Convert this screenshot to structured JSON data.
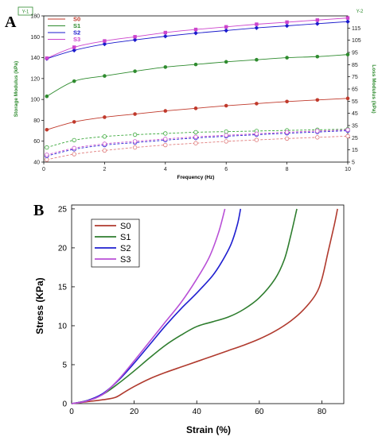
{
  "chart_data": [
    {
      "panel_label": "A",
      "type": "line",
      "xlabel": "Frequency (Hz)",
      "ylabel_left": "Storage Modulus (kPa)",
      "ylabel_right": "Loss Modulus (kPa)",
      "left_axis_tag": "Y-1",
      "right_axis_tag": "Y-2",
      "xlim": [
        0,
        10
      ],
      "ylim_left": [
        40,
        180
      ],
      "ylim_right": [
        5,
        125
      ],
      "x_ticks": [
        0,
        2,
        4,
        6,
        8,
        10
      ],
      "y_ticks_left": [
        40,
        60,
        80,
        100,
        120,
        140,
        160,
        180
      ],
      "y_ticks_right": [
        5,
        15,
        25,
        35,
        45,
        55,
        65,
        75,
        85,
        95,
        105,
        115
      ],
      "legend_position": "top-left",
      "x": [
        0.1,
        1,
        2,
        3,
        4,
        5,
        6,
        7,
        8,
        9,
        10
      ],
      "series": [
        {
          "name": "S0",
          "color": "#c0392b",
          "axis": "left",
          "marker": "circle-filled",
          "values": [
            71,
            78.5,
            83,
            86,
            89,
            91.5,
            94,
            96,
            98,
            99.5,
            101
          ]
        },
        {
          "name": "S1",
          "color": "#2e8b2e",
          "axis": "left",
          "marker": "circle-filled",
          "values": [
            103,
            117.5,
            122.5,
            127,
            131,
            133.5,
            136,
            138,
            140,
            141,
            143
          ]
        },
        {
          "name": "S2",
          "color": "#1a1acc",
          "axis": "left",
          "marker": "diamond-filled",
          "values": [
            139,
            147,
            153,
            157,
            160.5,
            163.5,
            166,
            168.5,
            170.5,
            172.5,
            174.5
          ]
        },
        {
          "name": "S3",
          "color": "#cc44cc",
          "axis": "left",
          "marker": "square-filled",
          "values": [
            139.5,
            150,
            156,
            160,
            164,
            167,
            169.5,
            172,
            174,
            176,
            178
          ]
        },
        {
          "name": "S0",
          "color": "#e07b7b",
          "axis": "right",
          "marker": "circle-open",
          "dashed": true,
          "values": [
            7,
            11.5,
            14.5,
            17,
            19,
            20.5,
            22,
            23.2,
            24.3,
            25.3,
            26.3
          ]
        },
        {
          "name": "S1",
          "color": "#3aa83a",
          "axis": "right",
          "marker": "circle-open",
          "dashed": true,
          "values": [
            17,
            23,
            26,
            27.5,
            28.5,
            29.5,
            30,
            30.5,
            31,
            31.5,
            32
          ]
        },
        {
          "name": "S2",
          "color": "#2a2ad6",
          "axis": "right",
          "marker": "circle-open",
          "dashed": true,
          "values": [
            10,
            15.5,
            19,
            21,
            23,
            24.8,
            26.2,
            27.5,
            28.7,
            29.7,
            30.8
          ]
        },
        {
          "name": "S3",
          "color": "#cc55cc",
          "axis": "right",
          "marker": "circle-open",
          "dashed": true,
          "values": [
            11,
            16.5,
            20,
            22,
            24,
            25.7,
            27,
            28.3,
            29.5,
            30.5,
            31.5
          ]
        }
      ]
    },
    {
      "panel_label": "B",
      "type": "line",
      "xlabel": "Strain (%)",
      "ylabel": "Stress (KPa)",
      "xlim": [
        0,
        87
      ],
      "ylim": [
        0,
        25.5
      ],
      "x_ticks": [
        0,
        20,
        40,
        60,
        80
      ],
      "y_ticks": [
        0,
        5,
        10,
        15,
        20,
        25
      ],
      "legend_position": "top-left",
      "series": [
        {
          "name": "S0",
          "color": "#b03a2e",
          "points": [
            [
              0,
              0
            ],
            [
              5,
              0.25
            ],
            [
              10,
              0.5
            ],
            [
              14,
              0.8
            ],
            [
              17,
              1.5
            ],
            [
              20,
              2.2
            ],
            [
              25,
              3.2
            ],
            [
              30,
              4
            ],
            [
              35,
              4.7
            ],
            [
              40,
              5.4
            ],
            [
              45,
              6.1
            ],
            [
              50,
              6.8
            ],
            [
              55,
              7.5
            ],
            [
              60,
              8.3
            ],
            [
              65,
              9.3
            ],
            [
              70,
              10.6
            ],
            [
              74,
              12
            ],
            [
              78,
              14
            ],
            [
              80,
              16
            ],
            [
              82,
              19.5
            ],
            [
              84,
              23
            ],
            [
              85,
              25
            ]
          ]
        },
        {
          "name": "S1",
          "color": "#2e7d2e",
          "points": [
            [
              0,
              0
            ],
            [
              5,
              0.4
            ],
            [
              10,
              1.2
            ],
            [
              15,
              2.6
            ],
            [
              20,
              4.2
            ],
            [
              25,
              5.9
            ],
            [
              30,
              7.5
            ],
            [
              35,
              8.8
            ],
            [
              40,
              9.9
            ],
            [
              45,
              10.5
            ],
            [
              50,
              11.1
            ],
            [
              55,
              12.1
            ],
            [
              60,
              13.6
            ],
            [
              65,
              16
            ],
            [
              68,
              18.5
            ],
            [
              70,
              21.5
            ],
            [
              72,
              25
            ]
          ]
        },
        {
          "name": "S2",
          "color": "#1f1fd0",
          "points": [
            [
              0,
              0
            ],
            [
              5,
              0.4
            ],
            [
              10,
              1.3
            ],
            [
              15,
              3
            ],
            [
              20,
              5.2
            ],
            [
              25,
              7.6
            ],
            [
              30,
              10
            ],
            [
              35,
              12.2
            ],
            [
              40,
              14.2
            ],
            [
              45,
              16.4
            ],
            [
              48,
              18.2
            ],
            [
              51,
              20.5
            ],
            [
              53,
              23
            ],
            [
              54,
              25
            ]
          ]
        },
        {
          "name": "S3",
          "color": "#b84fd6",
          "points": [
            [
              0,
              0
            ],
            [
              5,
              0.35
            ],
            [
              10,
              1.2
            ],
            [
              15,
              3.1
            ],
            [
              20,
              5.5
            ],
            [
              25,
              8
            ],
            [
              30,
              10.5
            ],
            [
              35,
              13
            ],
            [
              40,
              16
            ],
            [
              44,
              18.8
            ],
            [
              47,
              22
            ],
            [
              49,
              25
            ]
          ]
        }
      ]
    }
  ]
}
